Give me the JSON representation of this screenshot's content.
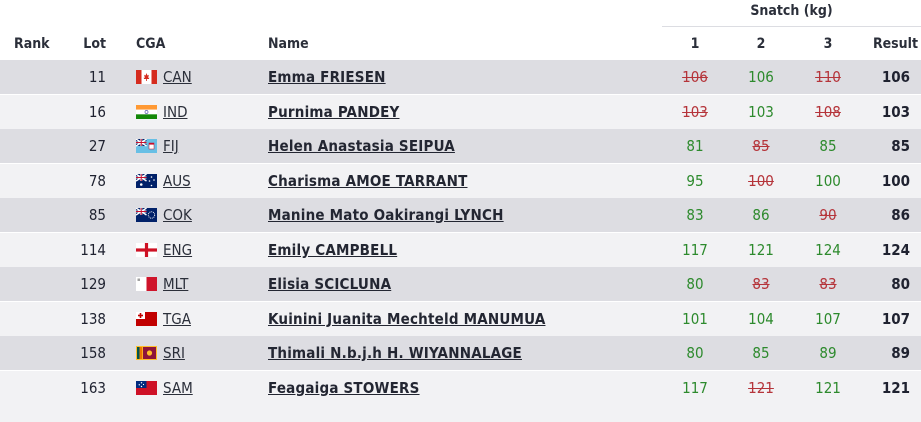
{
  "snatch_heading": "Snatch (kg)",
  "columns": {
    "rank": "Rank",
    "lot": "Lot",
    "cga": "CGA",
    "name": "Name",
    "a1": "1",
    "a2": "2",
    "a3": "3",
    "result": "Result"
  },
  "rows": [
    {
      "rank": "",
      "lot": "11",
      "cga": "CAN",
      "flag": "canada-flag-icon",
      "name": "Emma FRIESEN",
      "a1": "106",
      "a1_good": false,
      "a2": "106",
      "a2_good": true,
      "a3": "110",
      "a3_good": false,
      "result": "106"
    },
    {
      "rank": "",
      "lot": "16",
      "cga": "IND",
      "flag": "india-flag-icon",
      "name": "Purnima PANDEY",
      "a1": "103",
      "a1_good": false,
      "a2": "103",
      "a2_good": true,
      "a3": "108",
      "a3_good": false,
      "result": "103"
    },
    {
      "rank": "",
      "lot": "27",
      "cga": "FIJ",
      "flag": "fiji-flag-icon",
      "name": "Helen Anastasia SEIPUA",
      "a1": "81",
      "a1_good": true,
      "a2": "85",
      "a2_good": false,
      "a3": "85",
      "a3_good": true,
      "result": "85"
    },
    {
      "rank": "",
      "lot": "78",
      "cga": "AUS",
      "flag": "australia-flag-icon",
      "name": "Charisma AMOE TARRANT",
      "a1": "95",
      "a1_good": true,
      "a2": "100",
      "a2_good": false,
      "a3": "100",
      "a3_good": true,
      "result": "100"
    },
    {
      "rank": "",
      "lot": "85",
      "cga": "COK",
      "flag": "cook-islands-flag-icon",
      "name": "Manine Mato Oakirangi LYNCH",
      "a1": "83",
      "a1_good": true,
      "a2": "86",
      "a2_good": true,
      "a3": "90",
      "a3_good": false,
      "result": "86"
    },
    {
      "rank": "",
      "lot": "114",
      "cga": "ENG",
      "flag": "england-flag-icon",
      "name": "Emily CAMPBELL",
      "a1": "117",
      "a1_good": true,
      "a2": "121",
      "a2_good": true,
      "a3": "124",
      "a3_good": true,
      "result": "124"
    },
    {
      "rank": "",
      "lot": "129",
      "cga": "MLT",
      "flag": "malta-flag-icon",
      "name": "Elisia SCICLUNA",
      "a1": "80",
      "a1_good": true,
      "a2": "83",
      "a2_good": false,
      "a3": "83",
      "a3_good": false,
      "result": "80"
    },
    {
      "rank": "",
      "lot": "138",
      "cga": "TGA",
      "flag": "tonga-flag-icon",
      "name": "Kuinini Juanita Mechteld MANUMUA",
      "a1": "101",
      "a1_good": true,
      "a2": "104",
      "a2_good": true,
      "a3": "107",
      "a3_good": true,
      "result": "107"
    },
    {
      "rank": "",
      "lot": "158",
      "cga": "SRI",
      "flag": "sri-lanka-flag-icon",
      "name": "Thimali N.b.j.h H. WIYANNALAGE",
      "a1": "80",
      "a1_good": true,
      "a2": "85",
      "a2_good": true,
      "a3": "89",
      "a3_good": true,
      "result": "89"
    },
    {
      "rank": "",
      "lot": "163",
      "cga": "SAM",
      "flag": "samoa-flag-icon",
      "name": "Feagaiga STOWERS",
      "a1": "117",
      "a1_good": true,
      "a2": "121",
      "a2_good": false,
      "a3": "121",
      "a3_good": true,
      "result": "121"
    }
  ]
}
